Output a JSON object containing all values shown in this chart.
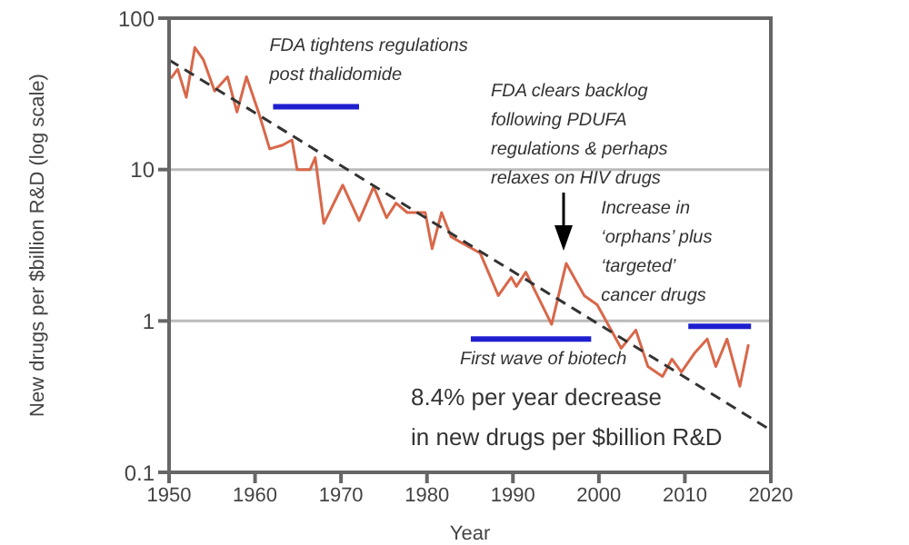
{
  "chart_data": {
    "type": "line",
    "xlabel": "Year",
    "ylabel": "New drugs per $billion R&D (log scale)",
    "log": "y",
    "grid": "y",
    "legend": false,
    "marker": "none",
    "xlim": [
      1950,
      2020
    ],
    "xticks": [
      1950,
      1960,
      1970,
      1980,
      1990,
      2000,
      2010,
      2020
    ],
    "ylim": [
      0.1,
      100
    ],
    "yticks": [
      0.1,
      1,
      10,
      100
    ],
    "series": [
      {
        "color": "#d9674a",
        "line_style": "solid",
        "x": [
          1950.2,
          1951,
          1952,
          1953,
          1954,
          1955.3,
          1956.8,
          1957.9,
          1959,
          1960.4,
          1961.7,
          1963.2,
          1964.3,
          1964.9,
          1966.4,
          1967,
          1968,
          1970.2,
          1972.1,
          1973.8,
          1975.3,
          1976.4,
          1977.7,
          1979.8,
          1980.6,
          1981.7,
          1982.8,
          1986.2,
          1988.3,
          1989.8,
          1990.4,
          1991.5,
          1994.5,
          1996.2,
          1998.3,
          1999.8,
          2002.6,
          2004.3,
          2005.7,
          2007.4,
          2008.5,
          2009.6,
          2011.1,
          2012.6,
          2013.6,
          2014.9,
          2016.4,
          2017.4
        ],
        "values": [
          40,
          46,
          30,
          64,
          53,
          33,
          41,
          24,
          41,
          24,
          13.7,
          14.5,
          15.7,
          10,
          10,
          12,
          4.4,
          7.9,
          4.6,
          7.7,
          4.8,
          6,
          5.2,
          5.2,
          3,
          5.2,
          3.6,
          2.8,
          1.47,
          1.94,
          1.69,
          2.1,
          0.95,
          2.4,
          1.47,
          1.28,
          0.66,
          0.87,
          0.5,
          0.43,
          0.56,
          0.46,
          0.61,
          0.76,
          0.5,
          0.76,
          0.37,
          0.7
        ]
      },
      {
        "color": "#333333",
        "line_style": "dashed",
        "x": [
          1950,
          2020
        ],
        "values": [
          53,
          0.19
        ]
      },
      {
        "name": "FDA tightens regulations\npost thalidomide",
        "color": "#1f1fd0",
        "line_style": "solid",
        "x": [
          1962.1,
          1972.1
        ],
        "values": [
          26,
          26
        ]
      },
      {
        "name": "First wave of biotech",
        "color": "#1f1fd0",
        "line_style": "solid",
        "x": [
          1985.1,
          1999.1
        ],
        "values": [
          0.76,
          0.76
        ]
      },
      {
        "name": "Increase in\n‘orphans’ plus\n‘targeted’\ncancer drugs",
        "color": "#1f1fd0",
        "line_style": "solid",
        "x": [
          2010.4,
          2017.7
        ],
        "values": [
          0.92,
          0.92
        ]
      }
    ],
    "annotations": [
      "FDA clears backlog\nfollowing PDUFA\nregulations & perhaps\nrelaxes on HIV drugs",
      "8.4% per year decrease\nin new drugs per $billion R&D"
    ]
  }
}
